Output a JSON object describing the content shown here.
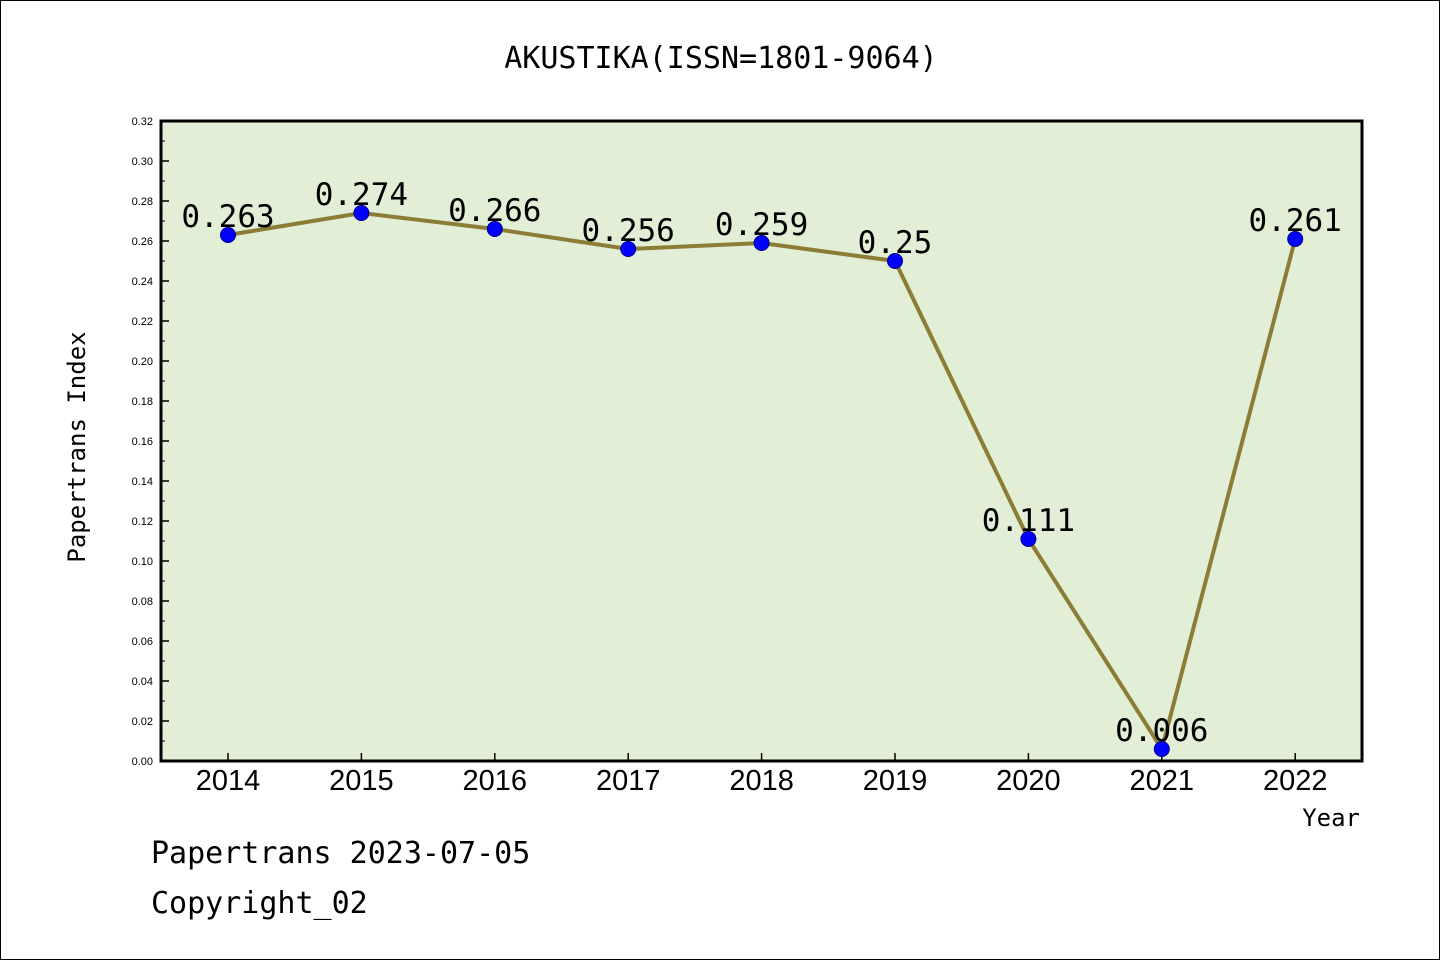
{
  "chart_data": {
    "type": "line",
    "title": "AKUSTIKA(ISSN=1801-9064)",
    "xlabel": "Year",
    "ylabel": "Papertrans Index",
    "categories": [
      "2014",
      "2015",
      "2016",
      "2017",
      "2018",
      "2019",
      "2020",
      "2021",
      "2022"
    ],
    "values": [
      0.263,
      0.274,
      0.266,
      0.256,
      0.259,
      0.25,
      0.111,
      0.006,
      0.261
    ],
    "data_labels": [
      "0.263",
      "0.274",
      "0.266",
      "0.256",
      "0.259",
      "0.25",
      "0.111",
      "0.006",
      "0.261"
    ],
    "ylim": [
      0,
      0.32
    ],
    "yticks": [
      "0.00",
      "0.02",
      "0.04",
      "0.06",
      "0.08",
      "0.10",
      "0.12",
      "0.14",
      "0.16",
      "0.18",
      "0.20",
      "0.22",
      "0.24",
      "0.26",
      "0.28",
      "0.30",
      "0.32"
    ],
    "grid": false,
    "colors": {
      "plot_background": "#e2efd6",
      "line": "#8c7d36",
      "marker": "#0000ff"
    }
  },
  "footer": {
    "date_line": "Papertrans 2023-07-05",
    "copyright": "Copyright_02"
  }
}
